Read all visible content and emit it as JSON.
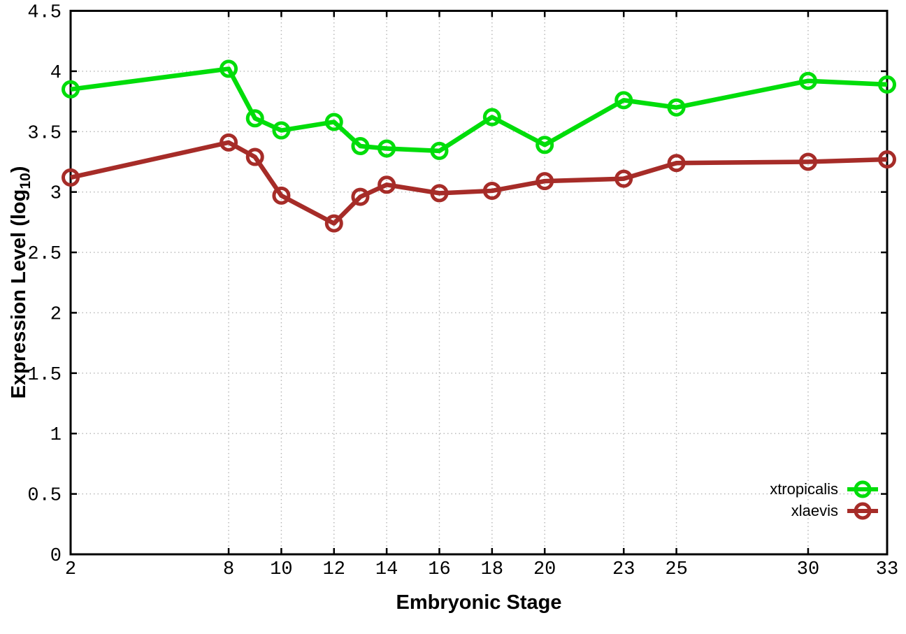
{
  "figure": {
    "xlabel": "Embryonic Stage",
    "ylabel_parts": {
      "prefix": "Expression Level (log",
      "sub": "10",
      "suffix": ")"
    }
  },
  "chart_data": {
    "type": "line",
    "title": "",
    "xlabel": "Embryonic Stage",
    "ylabel": "Expression Level (log10)",
    "x": [
      2,
      8,
      9,
      10,
      12,
      13,
      14,
      16,
      18,
      20,
      23,
      25,
      30,
      33
    ],
    "series": [
      {
        "name": "xtropicalis",
        "color": "#00dd0a",
        "values": [
          3.85,
          4.02,
          3.61,
          3.51,
          3.58,
          3.38,
          3.36,
          3.34,
          3.62,
          3.39,
          3.76,
          3.7,
          3.92,
          3.89
        ]
      },
      {
        "name": "xlaevis",
        "color": "#a62c28",
        "values": [
          3.12,
          3.41,
          3.29,
          2.97,
          2.74,
          2.96,
          3.06,
          2.99,
          3.01,
          3.09,
          3.11,
          3.24,
          3.25,
          3.27
        ]
      }
    ],
    "x_tick_labels": [
      "2",
      "8",
      "10",
      "12",
      "14",
      "16",
      "18",
      "20",
      "23",
      "25",
      "30",
      "33"
    ],
    "x_tick_values": [
      2,
      8,
      10,
      12,
      14,
      16,
      18,
      20,
      23,
      25,
      30,
      33
    ],
    "y_ticks": [
      0,
      0.5,
      1,
      1.5,
      2,
      2.5,
      3,
      3.5,
      4,
      4.5
    ],
    "y_tick_labels": [
      "0",
      "0.5",
      "1",
      "1.5",
      "2",
      "2.5",
      "3",
      "3.5",
      "4",
      "4.5"
    ],
    "xlim": [
      2,
      33
    ],
    "ylim": [
      0,
      4.5
    ],
    "grid": true,
    "legend_position": "bottom-right-inside",
    "colors": {
      "grid": "#b5b5b5",
      "axis": "#000000",
      "tick_text": "#000000"
    }
  }
}
